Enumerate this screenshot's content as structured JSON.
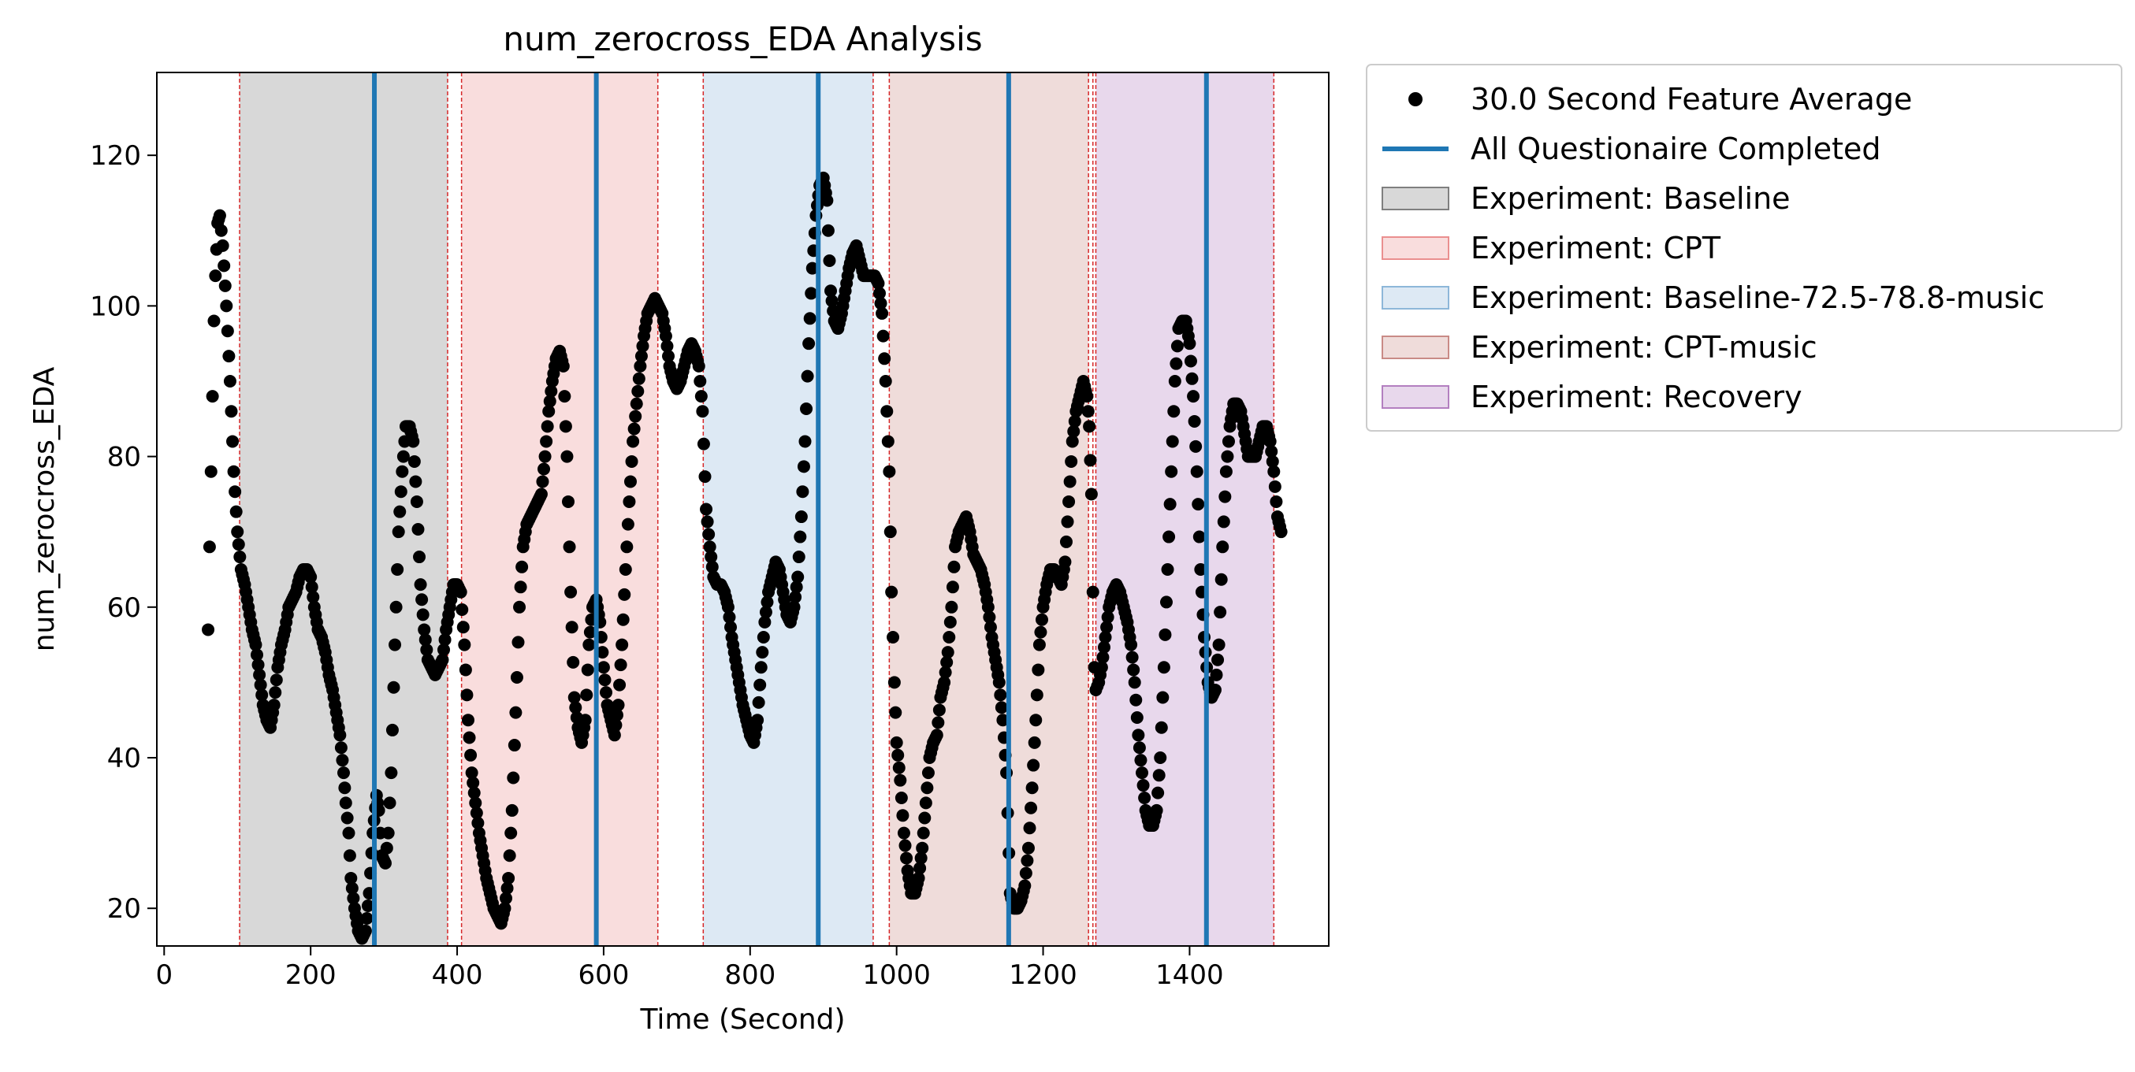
{
  "chart_data": {
    "type": "scatter",
    "title": "num_zerocross_EDA Analysis",
    "xlabel": "Time (Second)",
    "ylabel": "num_zerocross_EDA",
    "xlim": [
      -10,
      1590
    ],
    "ylim": [
      15,
      131
    ],
    "xticks": [
      0,
      200,
      400,
      600,
      800,
      1000,
      1200,
      1400
    ],
    "yticks": [
      20,
      40,
      60,
      80,
      100,
      120
    ],
    "legend_position": "outside-right",
    "series": [
      {
        "name": "30.0 Second Feature Average",
        "color": "#000000",
        "marker": "circle",
        "keypoints": [
          [
            60,
            57
          ],
          [
            62,
            68
          ],
          [
            64,
            78
          ],
          [
            66,
            88
          ],
          [
            68,
            98
          ],
          [
            70,
            104
          ],
          [
            73,
            111
          ],
          [
            76,
            112
          ],
          [
            80,
            108
          ],
          [
            85,
            100
          ],
          [
            90,
            90
          ],
          [
            95,
            78
          ],
          [
            100,
            70
          ],
          [
            105,
            65
          ],
          [
            110,
            63
          ],
          [
            115,
            60
          ],
          [
            120,
            57
          ],
          [
            125,
            55
          ],
          [
            130,
            51
          ],
          [
            135,
            47
          ],
          [
            140,
            45
          ],
          [
            145,
            44
          ],
          [
            150,
            47
          ],
          [
            155,
            52
          ],
          [
            160,
            55
          ],
          [
            165,
            57
          ],
          [
            170,
            60
          ],
          [
            175,
            61
          ],
          [
            180,
            62
          ],
          [
            185,
            64
          ],
          [
            190,
            65
          ],
          [
            195,
            65
          ],
          [
            200,
            64
          ],
          [
            205,
            60
          ],
          [
            210,
            57
          ],
          [
            215,
            56
          ],
          [
            220,
            54
          ],
          [
            225,
            51
          ],
          [
            230,
            49
          ],
          [
            235,
            46
          ],
          [
            240,
            43
          ],
          [
            245,
            38
          ],
          [
            248,
            34
          ],
          [
            252,
            30
          ],
          [
            255,
            24
          ],
          [
            260,
            20
          ],
          [
            265,
            17
          ],
          [
            270,
            16
          ],
          [
            275,
            17
          ],
          [
            280,
            22
          ],
          [
            285,
            30
          ],
          [
            290,
            35
          ],
          [
            293,
            33
          ],
          [
            297,
            27
          ],
          [
            302,
            26
          ],
          [
            306,
            30
          ],
          [
            310,
            38
          ],
          [
            315,
            55
          ],
          [
            320,
            70
          ],
          [
            325,
            78
          ],
          [
            330,
            84
          ],
          [
            335,
            84
          ],
          [
            340,
            82
          ],
          [
            345,
            74
          ],
          [
            350,
            63
          ],
          [
            355,
            57
          ],
          [
            360,
            53
          ],
          [
            365,
            52
          ],
          [
            370,
            51
          ],
          [
            375,
            52
          ],
          [
            380,
            53
          ],
          [
            385,
            57
          ],
          [
            390,
            60
          ],
          [
            395,
            63
          ],
          [
            400,
            63
          ],
          [
            405,
            62
          ],
          [
            410,
            55
          ],
          [
            415,
            45
          ],
          [
            420,
            38
          ],
          [
            425,
            34
          ],
          [
            430,
            30
          ],
          [
            435,
            27
          ],
          [
            440,
            24
          ],
          [
            445,
            22
          ],
          [
            450,
            20
          ],
          [
            455,
            19
          ],
          [
            460,
            18
          ],
          [
            465,
            20
          ],
          [
            470,
            24
          ],
          [
            475,
            33
          ],
          [
            480,
            46
          ],
          [
            485,
            60
          ],
          [
            490,
            68
          ],
          [
            495,
            71
          ],
          [
            500,
            72
          ],
          [
            505,
            73
          ],
          [
            510,
            74
          ],
          [
            515,
            75
          ],
          [
            520,
            80
          ],
          [
            525,
            86
          ],
          [
            530,
            90
          ],
          [
            535,
            93
          ],
          [
            540,
            94
          ],
          [
            545,
            92
          ],
          [
            550,
            80
          ],
          [
            555,
            62
          ],
          [
            560,
            48
          ],
          [
            565,
            44
          ],
          [
            570,
            42
          ],
          [
            575,
            45
          ],
          [
            580,
            55
          ],
          [
            585,
            60
          ],
          [
            590,
            61
          ],
          [
            595,
            58
          ],
          [
            600,
            52
          ],
          [
            605,
            47
          ],
          [
            610,
            45
          ],
          [
            615,
            43
          ],
          [
            620,
            47
          ],
          [
            625,
            55
          ],
          [
            630,
            65
          ],
          [
            635,
            74
          ],
          [
            640,
            82
          ],
          [
            645,
            87
          ],
          [
            650,
            92
          ],
          [
            655,
            96
          ],
          [
            660,
            99
          ],
          [
            665,
            100
          ],
          [
            670,
            101
          ],
          [
            675,
            100
          ],
          [
            680,
            99
          ],
          [
            685,
            96
          ],
          [
            690,
            92
          ],
          [
            695,
            90
          ],
          [
            700,
            89
          ],
          [
            705,
            90
          ],
          [
            710,
            92
          ],
          [
            715,
            94
          ],
          [
            720,
            95
          ],
          [
            725,
            94
          ],
          [
            730,
            92
          ],
          [
            735,
            86
          ],
          [
            740,
            73
          ],
          [
            745,
            68
          ],
          [
            750,
            64
          ],
          [
            755,
            63
          ],
          [
            760,
            63
          ],
          [
            765,
            62
          ],
          [
            770,
            60
          ],
          [
            775,
            56
          ],
          [
            780,
            53
          ],
          [
            785,
            50
          ],
          [
            790,
            47
          ],
          [
            795,
            45
          ],
          [
            800,
            43
          ],
          [
            805,
            42
          ],
          [
            810,
            45
          ],
          [
            815,
            52
          ],
          [
            820,
            58
          ],
          [
            825,
            62
          ],
          [
            830,
            64
          ],
          [
            835,
            66
          ],
          [
            840,
            65
          ],
          [
            845,
            62
          ],
          [
            850,
            59
          ],
          [
            855,
            58
          ],
          [
            860,
            60
          ],
          [
            865,
            64
          ],
          [
            870,
            72
          ],
          [
            875,
            82
          ],
          [
            880,
            95
          ],
          [
            885,
            105
          ],
          [
            890,
            112
          ],
          [
            895,
            116
          ],
          [
            900,
            117
          ],
          [
            905,
            114
          ],
          [
            910,
            102
          ],
          [
            915,
            98
          ],
          [
            920,
            97
          ],
          [
            925,
            99
          ],
          [
            930,
            102
          ],
          [
            935,
            105
          ],
          [
            940,
            107
          ],
          [
            945,
            108
          ],
          [
            950,
            106
          ],
          [
            955,
            104
          ],
          [
            960,
            104
          ],
          [
            965,
            104
          ],
          [
            970,
            104
          ],
          [
            975,
            103
          ],
          [
            980,
            99
          ],
          [
            985,
            90
          ],
          [
            990,
            78
          ],
          [
            993,
            62
          ],
          [
            997,
            50
          ],
          [
            1000,
            42
          ],
          [
            1005,
            37
          ],
          [
            1010,
            30
          ],
          [
            1015,
            25
          ],
          [
            1020,
            22
          ],
          [
            1025,
            22
          ],
          [
            1030,
            24
          ],
          [
            1035,
            28
          ],
          [
            1040,
            34
          ],
          [
            1045,
            40
          ],
          [
            1050,
            42
          ],
          [
            1055,
            43
          ],
          [
            1060,
            48
          ],
          [
            1065,
            50
          ],
          [
            1070,
            54
          ],
          [
            1075,
            60
          ],
          [
            1080,
            68
          ],
          [
            1085,
            70
          ],
          [
            1090,
            71
          ],
          [
            1095,
            72
          ],
          [
            1100,
            70
          ],
          [
            1105,
            67
          ],
          [
            1110,
            66
          ],
          [
            1115,
            65
          ],
          [
            1120,
            63
          ],
          [
            1125,
            60
          ],
          [
            1130,
            56
          ],
          [
            1135,
            53
          ],
          [
            1140,
            50
          ],
          [
            1145,
            45
          ],
          [
            1150,
            38
          ],
          [
            1155,
            22
          ],
          [
            1160,
            20
          ],
          [
            1165,
            20
          ],
          [
            1170,
            21
          ],
          [
            1175,
            23
          ],
          [
            1180,
            28
          ],
          [
            1185,
            36
          ],
          [
            1190,
            45
          ],
          [
            1195,
            55
          ],
          [
            1200,
            60
          ],
          [
            1205,
            63
          ],
          [
            1210,
            65
          ],
          [
            1215,
            65
          ],
          [
            1220,
            64
          ],
          [
            1225,
            63
          ],
          [
            1230,
            66
          ],
          [
            1235,
            74
          ],
          [
            1240,
            82
          ],
          [
            1245,
            86
          ],
          [
            1250,
            88
          ],
          [
            1255,
            90
          ],
          [
            1260,
            88
          ],
          [
            1263,
            84
          ],
          [
            1266,
            75
          ],
          [
            1268,
            62
          ],
          [
            1270,
            52
          ],
          [
            1272,
            49
          ],
          [
            1276,
            50
          ],
          [
            1280,
            52
          ],
          [
            1285,
            56
          ],
          [
            1290,
            60
          ],
          [
            1295,
            62
          ],
          [
            1300,
            63
          ],
          [
            1305,
            62
          ],
          [
            1310,
            60
          ],
          [
            1315,
            58
          ],
          [
            1320,
            55
          ],
          [
            1325,
            50
          ],
          [
            1330,
            43
          ],
          [
            1335,
            38
          ],
          [
            1340,
            33
          ],
          [
            1345,
            31
          ],
          [
            1350,
            31
          ],
          [
            1355,
            33
          ],
          [
            1360,
            40
          ],
          [
            1365,
            52
          ],
          [
            1370,
            65
          ],
          [
            1375,
            78
          ],
          [
            1380,
            90
          ],
          [
            1385,
            97
          ],
          [
            1390,
            98
          ],
          [
            1395,
            98
          ],
          [
            1400,
            95
          ],
          [
            1405,
            88
          ],
          [
            1410,
            78
          ],
          [
            1415,
            65
          ],
          [
            1420,
            56
          ],
          [
            1425,
            50
          ],
          [
            1430,
            48
          ],
          [
            1435,
            49
          ],
          [
            1440,
            55
          ],
          [
            1445,
            68
          ],
          [
            1450,
            78
          ],
          [
            1455,
            84
          ],
          [
            1460,
            87
          ],
          [
            1465,
            87
          ],
          [
            1470,
            86
          ],
          [
            1475,
            83
          ],
          [
            1480,
            80
          ],
          [
            1485,
            80
          ],
          [
            1490,
            80
          ],
          [
            1495,
            82
          ],
          [
            1500,
            84
          ],
          [
            1505,
            84
          ],
          [
            1510,
            82
          ],
          [
            1515,
            78
          ],
          [
            1520,
            72
          ],
          [
            1525,
            70
          ]
        ]
      },
      {
        "name": "All Questionaire Completed",
        "color": "#1f77b4",
        "type": "vline",
        "x": [
          287,
          590,
          893,
          1153,
          1423
        ]
      }
    ],
    "regions": [
      {
        "name": "Experiment: Baseline",
        "color": "#7f7f7f",
        "opacity": 0.3,
        "spans": [
          [
            103,
            387
          ]
        ]
      },
      {
        "name": "Experiment: CPT",
        "color": "#ea8f8f",
        "opacity": 0.3,
        "spans": [
          [
            406,
            674
          ]
        ]
      },
      {
        "name": "Experiment: Baseline-72.5-78.8-music",
        "color": "#8db7d9",
        "opacity": 0.3,
        "spans": [
          [
            736,
            968
          ]
        ]
      },
      {
        "name": "Experiment: CPT-music",
        "color": "#c98b86",
        "opacity": 0.3,
        "spans": [
          [
            990,
            1262
          ]
        ]
      },
      {
        "name": "Experiment: Recovery",
        "color": "#b37fc0",
        "opacity": 0.3,
        "spans": [
          [
            1272,
            1515
          ]
        ]
      }
    ],
    "boundary_lines_x": [
      103,
      387,
      406,
      674,
      736,
      968,
      990,
      1262,
      1268,
      1272,
      1515
    ],
    "boundary_line_color": "#d62728"
  }
}
